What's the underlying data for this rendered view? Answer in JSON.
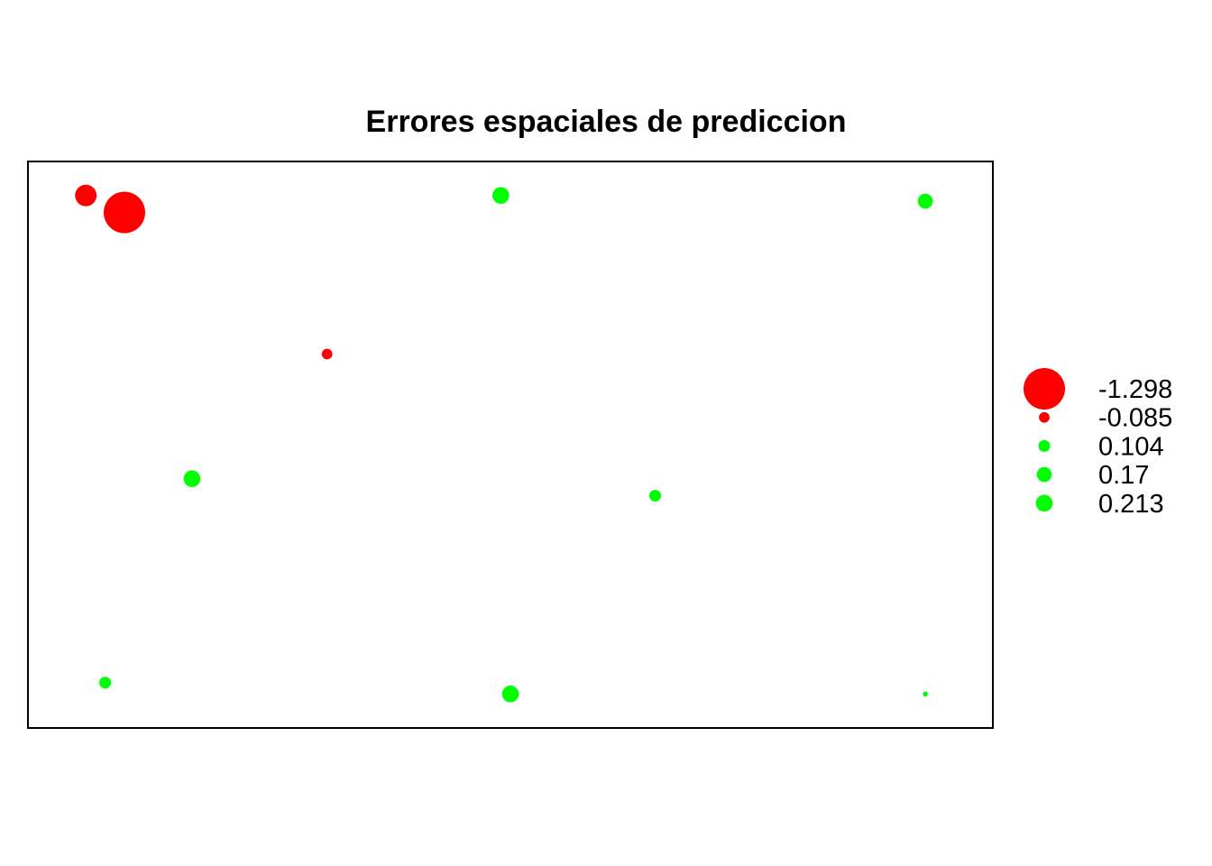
{
  "chart_data": {
    "type": "scatter",
    "title": "Errores espaciales de prediccion",
    "xlabel": "",
    "ylabel": "",
    "axes_shown": false,
    "grid": false,
    "legend_placement": "right",
    "colors": {
      "negative": "#ff0000",
      "positive": "#00ff00"
    },
    "points": [
      {
        "x": 0.06,
        "y": 0.94,
        "value": -0.35
      },
      {
        "x": 0.1,
        "y": 0.91,
        "value": -1.298
      },
      {
        "x": 0.31,
        "y": 0.66,
        "value": -0.085
      },
      {
        "x": 0.49,
        "y": 0.94,
        "value": 0.213
      },
      {
        "x": 0.93,
        "y": 0.93,
        "value": 0.17
      },
      {
        "x": 0.17,
        "y": 0.44,
        "value": 0.213
      },
      {
        "x": 0.65,
        "y": 0.41,
        "value": 0.104
      },
      {
        "x": 0.08,
        "y": 0.08,
        "value": 0.104
      },
      {
        "x": 0.5,
        "y": 0.06,
        "value": 0.213
      },
      {
        "x": 0.93,
        "y": 0.06,
        "value": 0.02
      }
    ],
    "legend": [
      {
        "label": "-1.298",
        "value": -1.298
      },
      {
        "label": "-0.085",
        "value": -0.085
      },
      {
        "label": "0.104",
        "value": 0.104
      },
      {
        "label": "0.17",
        "value": 0.17
      },
      {
        "label": "0.213",
        "value": 0.213
      }
    ]
  }
}
